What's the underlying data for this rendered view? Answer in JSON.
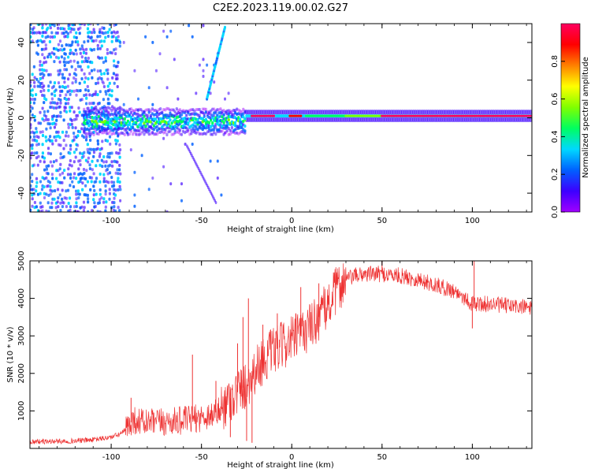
{
  "figure": {
    "title": "C2E2.2023.119.00.02.G27"
  },
  "chart_data": [
    {
      "type": "heatmap",
      "xlabel": "Height of straight line (km)",
      "ylabel": "Frequency (Hz)",
      "xlim": [
        -145,
        133
      ],
      "ylim": [
        -50,
        50
      ],
      "xticks": [
        -100,
        -50,
        0,
        50,
        100
      ],
      "yticks": [
        -40,
        -20,
        0,
        20,
        40
      ],
      "grid": false,
      "colorbar": {
        "label": "Normalized spectral amplitude",
        "range": [
          0,
          1
        ],
        "ticks": [
          0.0,
          0.2,
          0.4,
          0.6,
          0.8
        ],
        "colormap": "hsv-rainbow",
        "colors": [
          "#a000ff",
          "#3c00ff",
          "#0060ff",
          "#00d8ff",
          "#00ff60",
          "#80ff00",
          "#ffff00",
          "#ff8000",
          "#ff0000",
          "#ff0060"
        ]
      },
      "features": [
        {
          "kind": "carrier-line",
          "x": [
            -20,
            133
          ],
          "frequency": 1,
          "amplitude": 0.9
        },
        {
          "kind": "broad-noise",
          "x": [
            -145,
            -95
          ],
          "frequency_spread": 50,
          "amplitude": 0.3
        },
        {
          "kind": "wide-band",
          "x": [
            -115,
            -25
          ],
          "frequency": -2,
          "half_width": 6,
          "amplitude": 0.4
        },
        {
          "kind": "chirp",
          "x": [
            -47,
            -37
          ],
          "frequency": [
            10,
            48
          ],
          "amplitude": 0.3
        }
      ]
    },
    {
      "type": "line",
      "xlabel": "Height of straight line (km)",
      "ylabel": "SNR (10 * v/v)",
      "xlim": [
        -145,
        133
      ],
      "ylim": [
        0,
        5000
      ],
      "xticks": [
        -100,
        -50,
        0,
        50,
        100
      ],
      "yticks": [
        1000,
        2000,
        3000,
        4000,
        5000
      ],
      "grid": false,
      "series": [
        {
          "color": "#ee3333",
          "x": [
            -145,
            -130,
            -120,
            -110,
            -100,
            -95,
            -92,
            -88,
            -80,
            -70,
            -60,
            -50,
            -45,
            -40,
            -35,
            -30,
            -25,
            -20,
            -15,
            -10,
            -5,
            0,
            5,
            10,
            15,
            20,
            25,
            30,
            35,
            40,
            50,
            60,
            70,
            80,
            90,
            95,
            100,
            105,
            110,
            120,
            133
          ],
          "values": [
            180,
            190,
            200,
            230,
            300,
            380,
            500,
            760,
            680,
            700,
            750,
            820,
            900,
            1000,
            1300,
            1500,
            1700,
            2100,
            2400,
            2600,
            2750,
            2900,
            3050,
            3250,
            3500,
            3800,
            4250,
            4500,
            4600,
            4650,
            4650,
            4600,
            4500,
            4350,
            4200,
            4050,
            3850,
            3850,
            3850,
            3800,
            3750
          ],
          "spikes": [
            {
              "x": -89,
              "value": 1350
            },
            {
              "x": -55,
              "value": 2500
            },
            {
              "x": -42,
              "value": 1800
            },
            {
              "x": -30,
              "value": 2800
            },
            {
              "x": -27,
              "value": 3500
            },
            {
              "x": -24,
              "value": 4000
            },
            {
              "x": -16,
              "value": 3300
            },
            {
              "x": -8,
              "value": 3600
            },
            {
              "x": 5,
              "value": 4300
            },
            {
              "x": 15,
              "value": 4400
            },
            {
              "x": 50,
              "value": 5000
            },
            {
              "x": 101,
              "value": 5000
            }
          ],
          "dips": [
            {
              "x": -25,
              "value": 200
            },
            {
              "x": -22,
              "value": 150
            },
            {
              "x": -34,
              "value": 300
            },
            {
              "x": 100,
              "value": 3200
            }
          ]
        }
      ]
    }
  ]
}
